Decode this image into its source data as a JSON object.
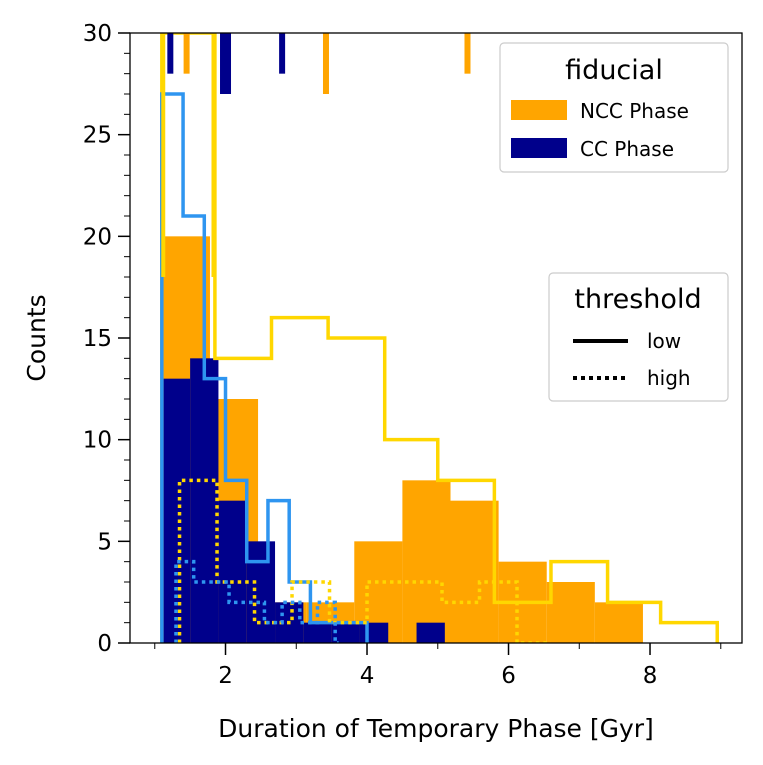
{
  "chart_data": {
    "type": "histogram",
    "xlabel": "Duration of Temporary Phase [Gyr]",
    "ylabel": "Counts",
    "xlim": [
      0.65,
      9.3
    ],
    "ylim": [
      0,
      30
    ],
    "xticks": [
      2,
      4,
      6,
      8
    ],
    "yticks": [
      0,
      5,
      10,
      15,
      20,
      25,
      30
    ],
    "colors": {
      "ncc_fill": "#FFA500",
      "cc_fill": "#00008B",
      "ncc_low_step": "#FFD700",
      "cc_low_step": "#2E95F0",
      "ncc_high_step": "#FFD700",
      "cc_high_step": "#2E95F0"
    },
    "filled_series": [
      {
        "name": "NCC Phase",
        "edges": [
          1.1,
          1.78,
          2.46,
          3.14,
          3.82,
          4.5,
          5.18,
          5.86,
          6.54,
          7.22,
          7.9
        ],
        "counts": [
          20,
          12,
          2,
          2,
          5,
          8,
          7,
          4,
          3,
          2
        ]
      },
      {
        "name": "CC Phase",
        "edges": [
          1.1,
          1.5,
          1.9,
          2.3,
          2.7,
          3.1,
          3.5,
          3.9,
          4.3,
          4.7,
          5.1
        ],
        "counts": [
          13,
          14,
          7,
          5,
          2,
          1,
          1,
          1,
          0,
          1
        ]
      }
    ],
    "step_series": [
      {
        "name": "NCC low",
        "threshold": "low",
        "phase": "NCC",
        "edges": [
          1.1,
          1.85,
          2.65,
          3.45,
          4.25,
          5.0,
          5.8,
          6.6,
          7.4,
          8.15,
          8.95
        ],
        "counts": [
          30,
          14,
          16,
          15,
          10,
          8,
          2,
          4,
          2,
          1
        ]
      },
      {
        "name": "CC low",
        "threshold": "low",
        "phase": "CC",
        "edges": [
          1.1,
          1.4,
          1.7,
          2.0,
          2.3,
          2.6,
          2.9,
          3.2,
          3.5,
          3.8,
          4.0
        ],
        "counts": [
          27,
          21,
          13,
          8,
          4,
          7,
          3,
          1,
          1,
          1
        ]
      },
      {
        "name": "NCC high",
        "threshold": "high",
        "phase": "NCC",
        "edges": [
          1.35,
          1.88,
          2.41,
          2.94,
          3.47,
          4.0,
          4.53,
          5.06,
          5.59,
          6.12,
          6.6
        ],
        "counts": [
          8,
          3,
          1,
          3,
          1,
          3,
          3,
          2,
          3,
          0
        ]
      },
      {
        "name": "CC high",
        "threshold": "high",
        "phase": "CC",
        "edges": [
          1.3,
          1.55,
          1.8,
          2.05,
          2.3,
          2.55,
          2.8,
          3.05,
          3.3,
          3.55,
          3.6
        ],
        "counts": [
          4,
          3,
          3,
          2,
          2,
          1,
          2,
          1,
          2,
          0
        ]
      }
    ],
    "rug": [
      {
        "phase": "NCC",
        "color": "#FFA500",
        "x": [
          1.45,
          3.42,
          5.42
        ],
        "lengths": [
          2,
          3,
          2
        ]
      },
      {
        "phase": "NCC",
        "color": "#FFD700",
        "x": [
          1.12,
          1.83
        ],
        "lengths": [
          12,
          12
        ]
      },
      {
        "phase": "CC",
        "color": "#00008B",
        "x": [
          1.22,
          2.0,
          2.8
        ],
        "lengths": [
          2,
          3,
          2
        ]
      }
    ],
    "legends": {
      "fiducial": {
        "title": "fiducial",
        "entries": [
          {
            "label": "NCC Phase",
            "color": "#FFA500"
          },
          {
            "label": "CC Phase",
            "color": "#00008B"
          }
        ]
      },
      "threshold": {
        "title": "threshold",
        "entries": [
          {
            "label": "low",
            "style": "solid"
          },
          {
            "label": "high",
            "style": "dotted"
          }
        ]
      }
    }
  }
}
